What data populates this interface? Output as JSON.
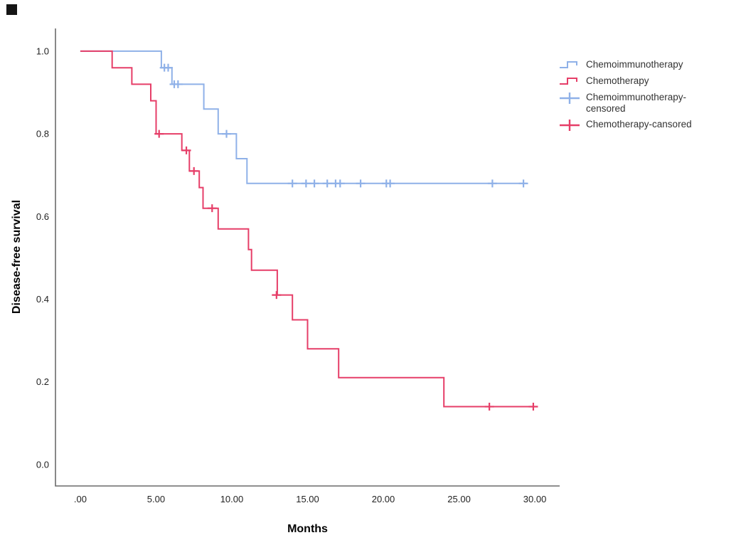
{
  "figure": {
    "y_axis_title": "Disease-free survival",
    "x_axis_title": "Months"
  },
  "legend": {
    "entries": [
      {
        "label": "Chemoimmunotherapy",
        "glyph": "step-line-icon",
        "color": "#8fb1e8"
      },
      {
        "label": "Chemotherapy",
        "glyph": "step-line-icon",
        "color": "#e63e68"
      },
      {
        "label": "Chemoimmunotherapy-censored",
        "glyph": "plus-censor-icon",
        "color": "#8fb1e8"
      },
      {
        "label": "Chemotherapy-cansored",
        "glyph": "plus-censor-icon",
        "color": "#e63e68"
      }
    ]
  },
  "chart_data": {
    "type": "line",
    "subtype": "kaplan-meier-step-survival",
    "title": "",
    "xlabel": "Months",
    "ylabel": "Disease-free survival",
    "xlim": [
      -1.64,
      31.64
    ],
    "ylim": [
      -0.052,
      1.055
    ],
    "grid": false,
    "legend_position": "right",
    "x_tick_values": [
      0,
      5,
      10,
      15,
      20,
      25,
      30
    ],
    "x_tick_labels": [
      ".00",
      "5.00",
      "10.00",
      "15.00",
      "20.00",
      "25.00",
      "30.00"
    ],
    "y_tick_values": [
      1.0,
      0.8,
      0.6,
      0.4,
      0.2,
      0.0
    ],
    "y_tick_labels": [
      "1.0",
      "0.8",
      "0.6",
      "0.4",
      "0.2",
      "0.0"
    ],
    "series": [
      {
        "name": "Chemoimmunotherapy",
        "color": "#8fb1e8",
        "step_points": [
          [
            0,
            1.0
          ],
          [
            5.35,
            1.0
          ],
          [
            5.35,
            0.96
          ],
          [
            6.05,
            0.96
          ],
          [
            6.05,
            0.92
          ],
          [
            8.15,
            0.92
          ],
          [
            8.15,
            0.86
          ],
          [
            9.1,
            0.86
          ],
          [
            9.1,
            0.8
          ],
          [
            10.3,
            0.8
          ],
          [
            10.3,
            0.74
          ],
          [
            11.0,
            0.74
          ],
          [
            11.0,
            0.68
          ],
          [
            29.5,
            0.68
          ]
        ],
        "censored": [
          [
            5.55,
            0.96
          ],
          [
            5.8,
            0.96
          ],
          [
            6.2,
            0.92
          ],
          [
            6.45,
            0.92
          ],
          [
            9.65,
            0.8
          ],
          [
            14.0,
            0.68
          ],
          [
            14.9,
            0.68
          ],
          [
            15.45,
            0.68
          ],
          [
            16.3,
            0.68
          ],
          [
            16.85,
            0.68
          ],
          [
            17.15,
            0.68
          ],
          [
            18.5,
            0.68
          ],
          [
            20.2,
            0.68
          ],
          [
            20.45,
            0.68
          ],
          [
            27.2,
            0.68
          ],
          [
            29.25,
            0.68
          ]
        ]
      },
      {
        "name": "Chemotherapy",
        "color": "#e63e68",
        "step_points": [
          [
            0,
            1.0
          ],
          [
            2.1,
            1.0
          ],
          [
            2.1,
            0.96
          ],
          [
            3.4,
            0.96
          ],
          [
            3.4,
            0.92
          ],
          [
            4.65,
            0.92
          ],
          [
            4.65,
            0.88
          ],
          [
            5.0,
            0.88
          ],
          [
            5.0,
            0.8
          ],
          [
            6.7,
            0.8
          ],
          [
            6.7,
            0.76
          ],
          [
            7.2,
            0.76
          ],
          [
            7.2,
            0.71
          ],
          [
            7.85,
            0.71
          ],
          [
            7.85,
            0.67
          ],
          [
            8.1,
            0.67
          ],
          [
            8.1,
            0.62
          ],
          [
            9.1,
            0.62
          ],
          [
            9.1,
            0.57
          ],
          [
            11.1,
            0.57
          ],
          [
            11.1,
            0.52
          ],
          [
            11.3,
            0.52
          ],
          [
            11.3,
            0.47
          ],
          [
            13.0,
            0.47
          ],
          [
            13.0,
            0.41
          ],
          [
            14.0,
            0.41
          ],
          [
            14.0,
            0.35
          ],
          [
            15.0,
            0.35
          ],
          [
            15.0,
            0.28
          ],
          [
            17.05,
            0.28
          ],
          [
            17.05,
            0.21
          ],
          [
            24.0,
            0.21
          ],
          [
            24.0,
            0.14
          ],
          [
            30.0,
            0.14
          ]
        ],
        "censored": [
          [
            5.2,
            0.8
          ],
          [
            7.0,
            0.76
          ],
          [
            7.5,
            0.71
          ],
          [
            8.7,
            0.62
          ],
          [
            12.95,
            0.41
          ],
          [
            27.0,
            0.14
          ],
          [
            29.9,
            0.14
          ]
        ]
      }
    ]
  }
}
